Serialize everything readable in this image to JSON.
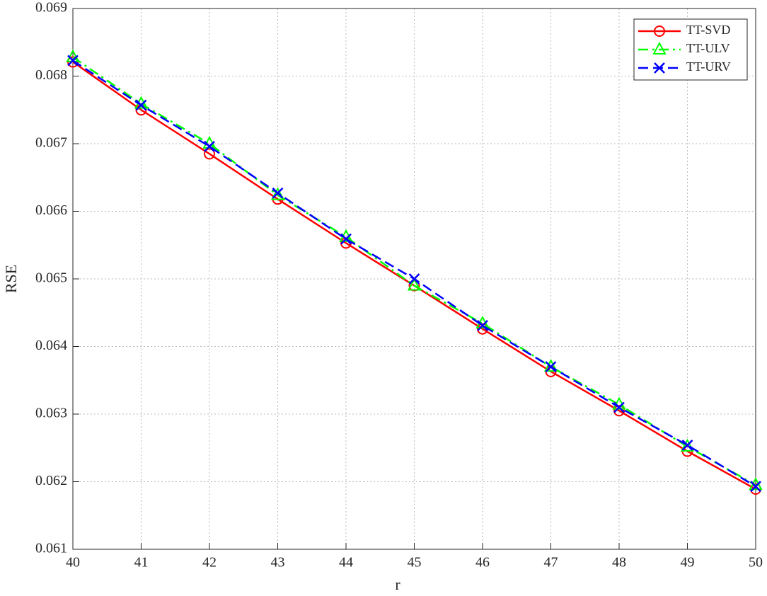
{
  "chart_data": {
    "type": "line",
    "xlabel": "r",
    "ylabel": "RSE",
    "x": [
      40,
      41,
      42,
      43,
      44,
      45,
      46,
      47,
      48,
      49,
      50
    ],
    "series": [
      {
        "name": "TT-SVD",
        "color": "#ff0000",
        "marker": "circle",
        "linestyle": "solid",
        "values": [
          0.06821,
          0.0675,
          0.06685,
          0.06618,
          0.06553,
          0.0649,
          0.06426,
          0.06363,
          0.06305,
          0.06245,
          0.06189
        ]
      },
      {
        "name": "TT-ULV",
        "color": "#00ff00",
        "marker": "triangle",
        "linestyle": "dashdot",
        "values": [
          0.06828,
          0.06759,
          0.067,
          0.06624,
          0.06562,
          0.0649,
          0.06434,
          0.0637,
          0.06314,
          0.06252,
          0.06195
        ]
      },
      {
        "name": "TT-URV",
        "color": "#0000ff",
        "marker": "x",
        "linestyle": "dashed",
        "values": [
          0.06823,
          0.06757,
          0.06696,
          0.06627,
          0.06559,
          0.065,
          0.06431,
          0.0637,
          0.0631,
          0.06254,
          0.06193
        ]
      }
    ],
    "xlim": [
      40,
      50
    ],
    "xticks": [
      40,
      41,
      42,
      43,
      44,
      45,
      46,
      47,
      48,
      49,
      50
    ],
    "ylim": [
      0.061,
      0.069
    ],
    "yticks": [
      0.061,
      0.062,
      0.063,
      0.064,
      0.065,
      0.066,
      0.067,
      0.068,
      0.069
    ],
    "grid": true,
    "legend": "upper right"
  }
}
